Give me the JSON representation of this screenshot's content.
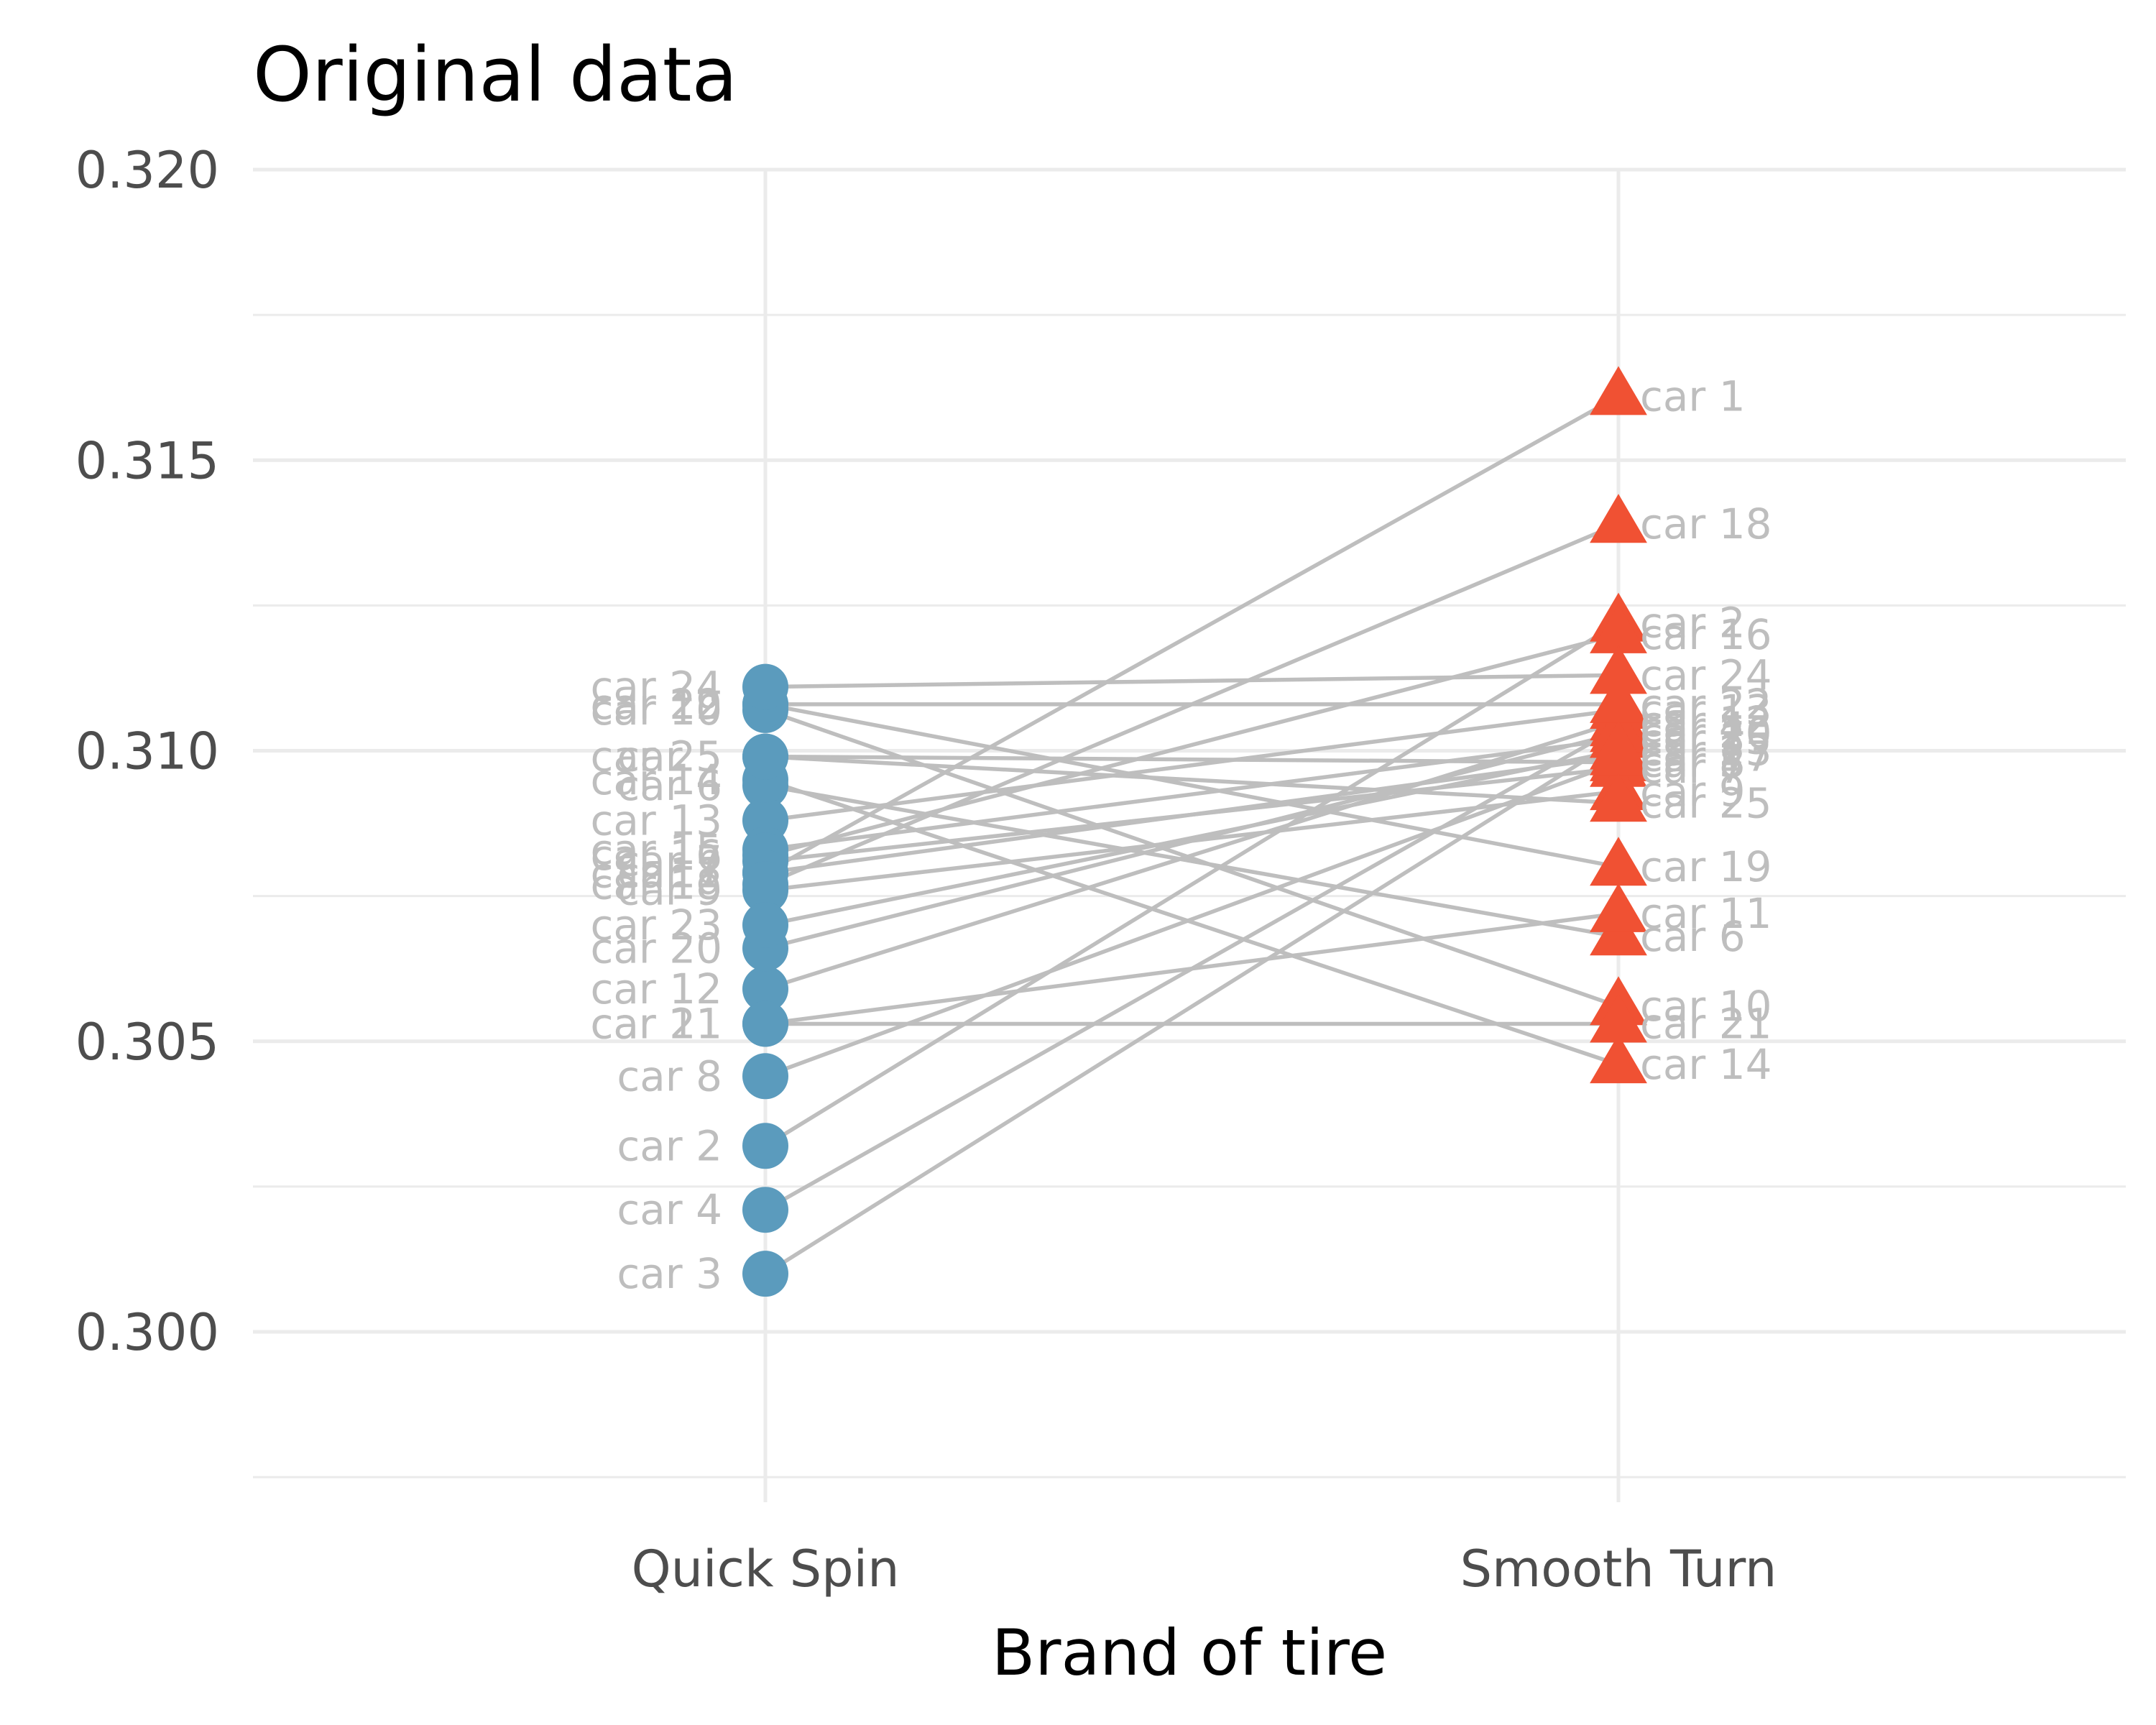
{
  "chart_data": {
    "type": "scatter",
    "title": "Original data",
    "xlabel": "Brand of tire",
    "ylabel": "",
    "categories": [
      "Quick Spin",
      "Smooth Turn"
    ],
    "ylim": [
      0.2975,
      0.32
    ],
    "yticks": [
      "0.300",
      "0.305",
      "0.310",
      "0.315",
      "0.320"
    ],
    "ytick_values": [
      0.3,
      0.305,
      0.31,
      0.315,
      0.32
    ],
    "grid": true,
    "legend": "none",
    "colors": {
      "Quick Spin": "#5b9bbd",
      "Smooth Turn": "#f05133",
      "lines": "#bebebe",
      "labels": "#bebebe"
    },
    "markers": {
      "Quick Spin": "circle",
      "Smooth Turn": "triangle"
    },
    "series": [
      {
        "values": [
          0.3079,
          0.3032,
          0.301,
          0.3021,
          0.3099,
          0.3094,
          0.3081,
          0.3044,
          0.3076,
          0.3107,
          0.3053,
          0.3059,
          0.3088,
          0.3095,
          0.3083,
          0.3082,
          0.3079,
          0.3077,
          0.3108,
          0.3066,
          0.3053,
          0.3108,
          0.307,
          0.3111,
          0.3099
        ]
      },
      {
        "values": [
          0.3161,
          0.3122,
          0.3102,
          0.3104,
          0.3098,
          0.3068,
          0.3097,
          0.3098,
          0.3093,
          0.3056,
          0.3072,
          0.3105,
          0.3107,
          0.3046,
          0.3102,
          0.312,
          0.3099,
          0.3139,
          0.308,
          0.3103,
          0.3053,
          0.3108,
          0.31,
          0.3113,
          0.3091
        ]
      }
    ],
    "point_labels": [
      "car 1",
      "car 2",
      "car 3",
      "car 4",
      "car 5",
      "car 6",
      "car 7",
      "car 8",
      "car 9",
      "car 10",
      "car 11",
      "car 12",
      "car 13",
      "car 14",
      "car 15",
      "car 16",
      "car 17",
      "car 18",
      "car 19",
      "car 20",
      "car 21",
      "car 22",
      "car 23",
      "car 24",
      "car 25"
    ]
  }
}
